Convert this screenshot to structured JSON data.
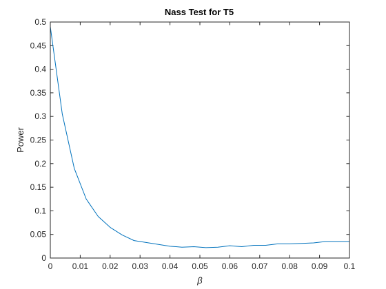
{
  "chart_data": {
    "type": "line",
    "title": "Nass Test for T5",
    "xlabel": "β",
    "ylabel": "Power",
    "xlim": [
      0,
      0.1
    ],
    "ylim": [
      0,
      0.5
    ],
    "xticks": [
      "0",
      "0.01",
      "0.02",
      "0.03",
      "0.04",
      "0.05",
      "0.06",
      "0.07",
      "0.08",
      "0.09",
      "0.1"
    ],
    "yticks": [
      "0",
      "0.05",
      "0.1",
      "0.15",
      "0.2",
      "0.25",
      "0.3",
      "0.35",
      "0.4",
      "0.45",
      "0.5"
    ],
    "grid": false,
    "series": [
      {
        "color": "#0072BD",
        "x": [
          0,
          0.004,
          0.008,
          0.012,
          0.016,
          0.02,
          0.024,
          0.028,
          0.032,
          0.036,
          0.04,
          0.044,
          0.048,
          0.052,
          0.056,
          0.06,
          0.064,
          0.068,
          0.072,
          0.076,
          0.08,
          0.084,
          0.088,
          0.092,
          0.096,
          0.1
        ],
        "y": [
          0.49,
          0.305,
          0.19,
          0.125,
          0.088,
          0.065,
          0.049,
          0.037,
          0.033,
          0.029,
          0.025,
          0.023,
          0.024,
          0.022,
          0.023,
          0.026,
          0.024,
          0.027,
          0.027,
          0.03,
          0.03,
          0.031,
          0.032,
          0.035,
          0.035,
          0.035
        ]
      }
    ]
  }
}
